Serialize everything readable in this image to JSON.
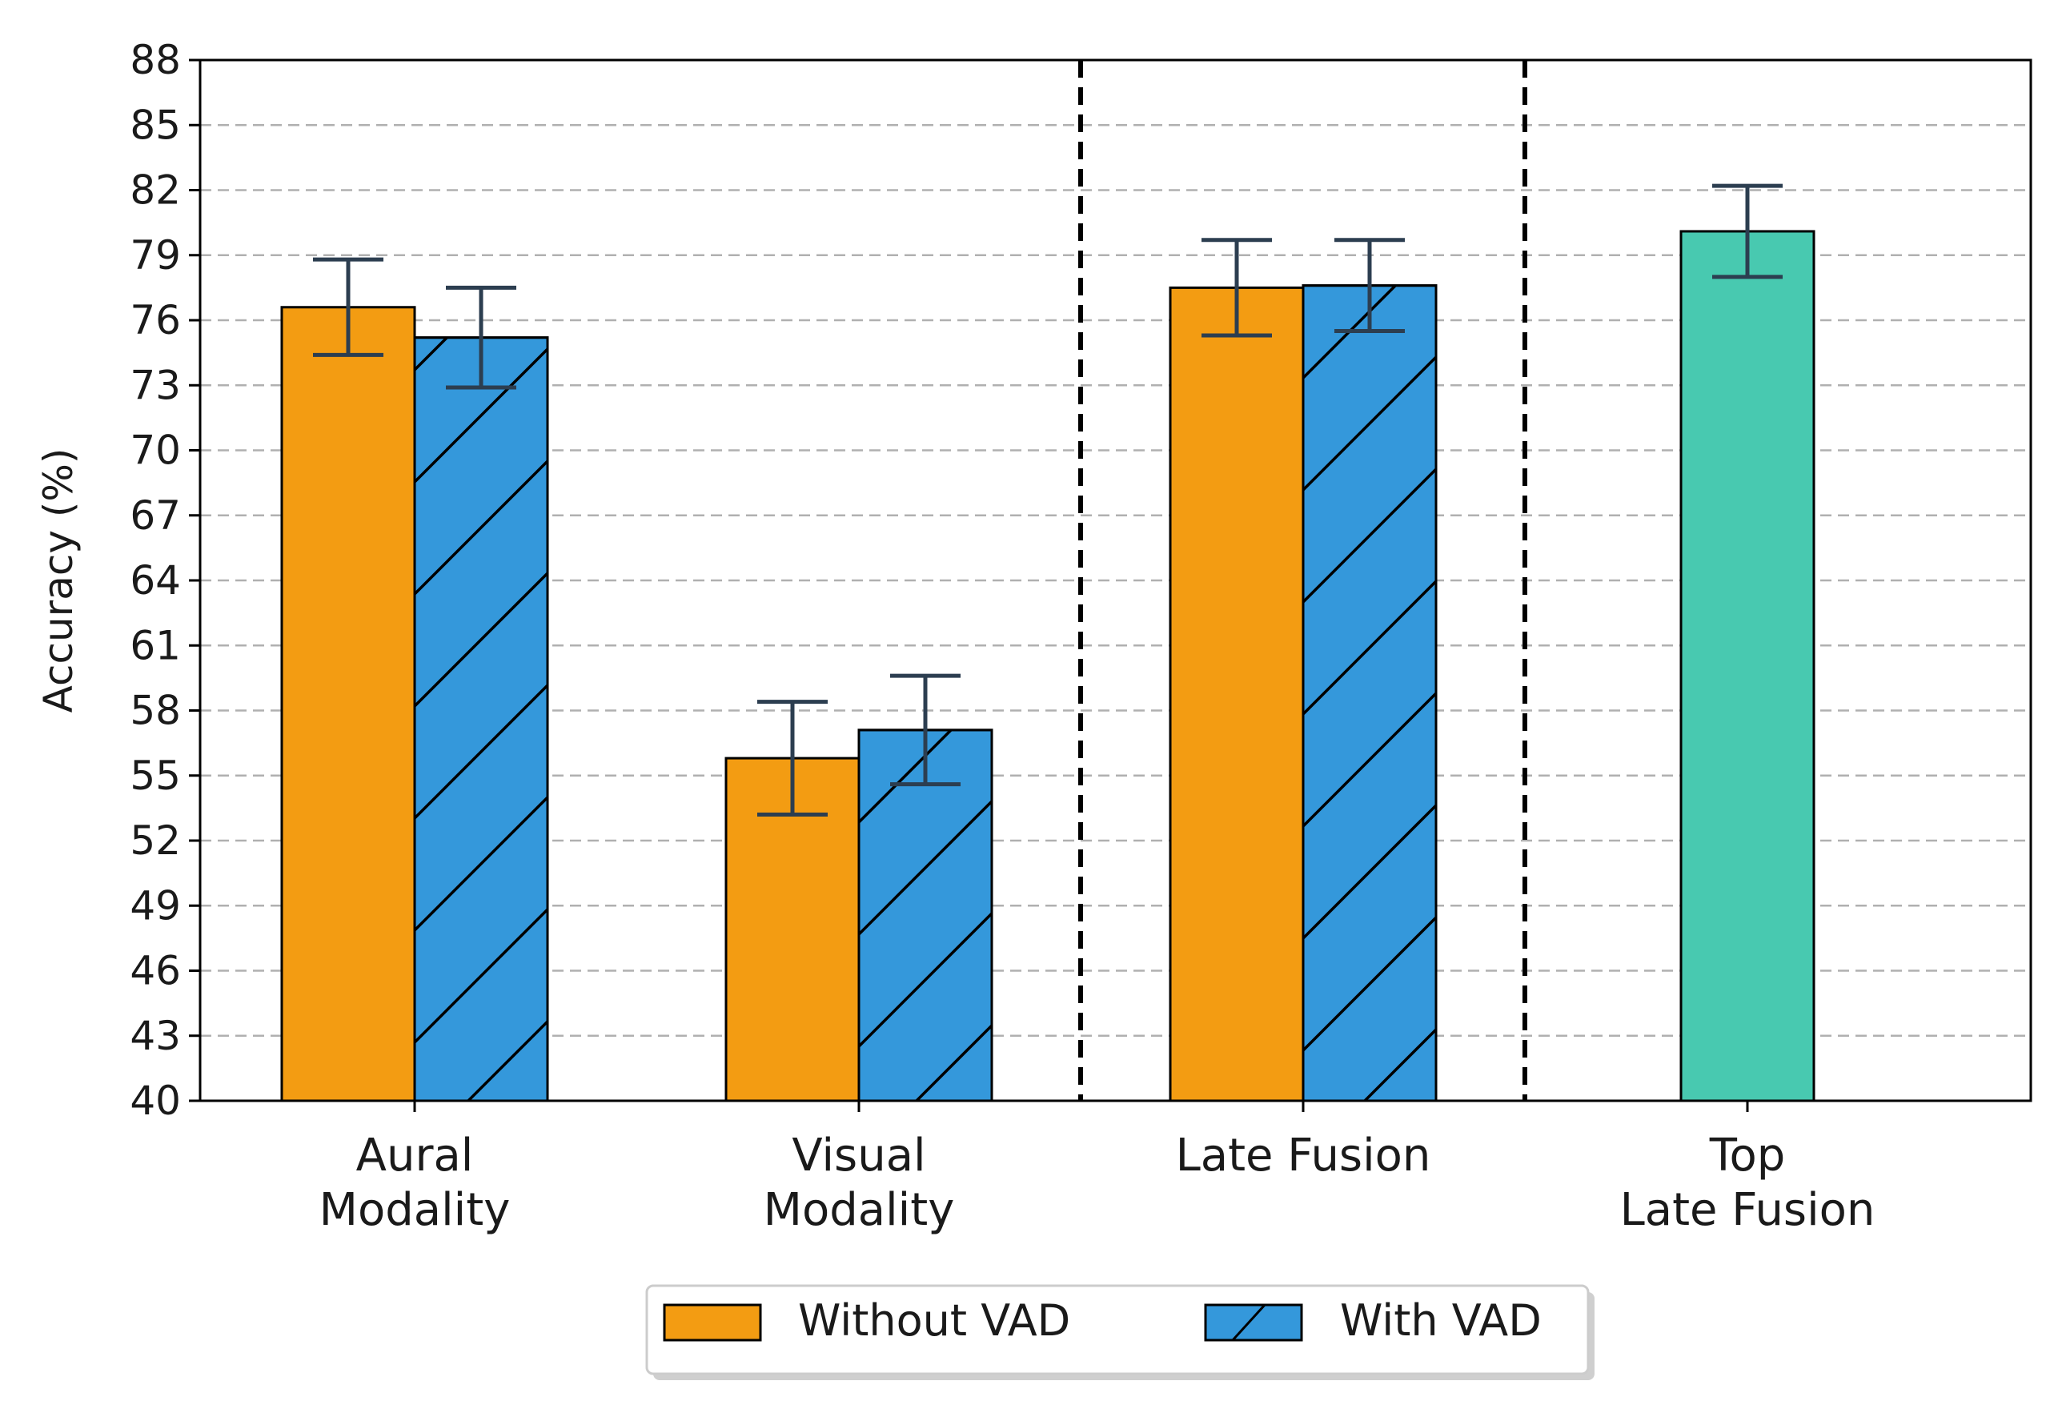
{
  "chart_data": {
    "type": "bar",
    "title": "",
    "xlabel": "",
    "ylabel": "Accuracy (%)",
    "ylim": [
      40,
      88
    ],
    "yticks": [
      40,
      43,
      46,
      49,
      52,
      55,
      58,
      61,
      64,
      67,
      70,
      73,
      76,
      79,
      82,
      85,
      88
    ],
    "grid": "horizontal-dashed",
    "legend_position": "bottom-center",
    "categories": [
      "Aural\nModality",
      "Visual\nModality",
      "Late Fusion",
      "Top\nLate Fusion"
    ],
    "group_separators": "dashed vertical lines between Visual Modality and Late Fusion, and between Late Fusion and Top Late Fusion",
    "series": [
      {
        "name": "Without VAD",
        "color": "#f39c12",
        "hatch": "none",
        "values": [
          76.6,
          55.8,
          77.5,
          null
        ],
        "errors": [
          2.2,
          2.6,
          2.2,
          null
        ]
      },
      {
        "name": "With VAD",
        "color": "#3498db",
        "hatch": "diagonal",
        "values": [
          75.2,
          57.1,
          77.6,
          null
        ],
        "errors": [
          2.3,
          2.5,
          2.1,
          null
        ]
      },
      {
        "name": "Top Late Fusion",
        "color": "#48c9b0",
        "hatch": "none",
        "values": [
          null,
          null,
          null,
          80.1
        ],
        "errors": [
          null,
          null,
          null,
          2.1
        ]
      }
    ],
    "error_bar_color": "#2c3e50"
  }
}
